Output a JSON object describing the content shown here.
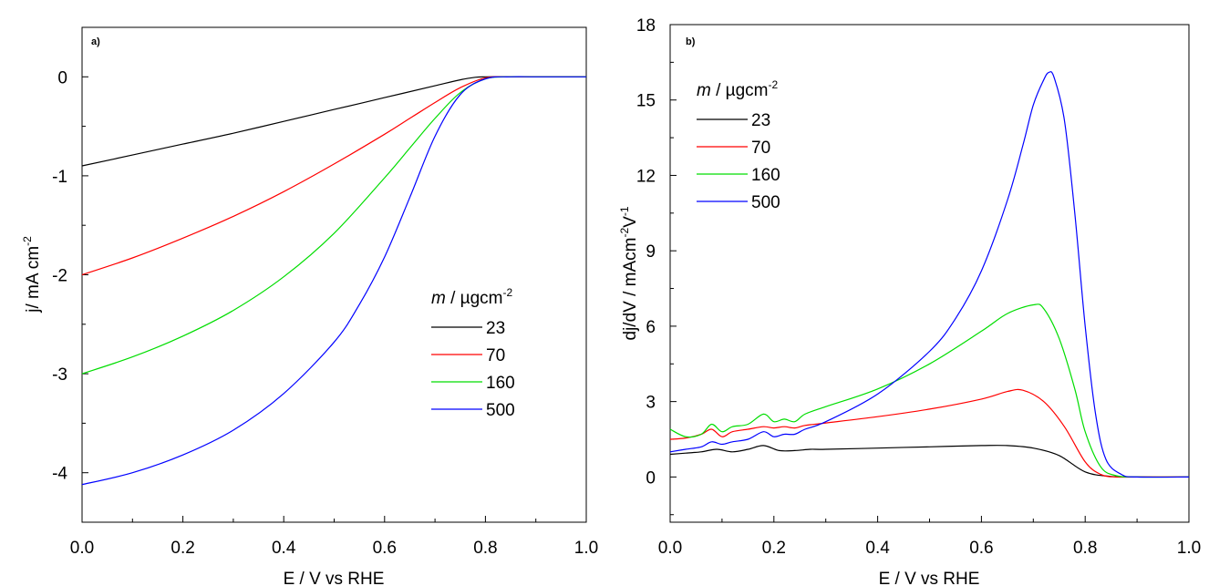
{
  "chart_data": [
    {
      "type": "line",
      "panel_label": "a)",
      "xlabel": "E / V vs RHE",
      "ylabel": "j/ mA cm",
      "ylabel_sup": "-2",
      "xlim": [
        0.0,
        1.0
      ],
      "ylim": [
        -4.5,
        0.5
      ],
      "xticks": [
        "0.0",
        "0.2",
        "0.4",
        "0.6",
        "0.8",
        "1.0"
      ],
      "yticks": [
        "0",
        "-1",
        "-2",
        "-3",
        "-4"
      ],
      "legend": {
        "title_italic": "m",
        "title_rest": " / µgcm",
        "title_sup": "-2",
        "placement": "right"
      },
      "series": [
        {
          "name": "23",
          "color": "#000000",
          "x": [
            0.0,
            0.1,
            0.2,
            0.3,
            0.4,
            0.5,
            0.6,
            0.7,
            0.75,
            0.78,
            0.8,
            0.85,
            0.9,
            1.0
          ],
          "y": [
            -0.9,
            -0.79,
            -0.68,
            -0.57,
            -0.45,
            -0.33,
            -0.21,
            -0.09,
            -0.03,
            -0.005,
            0.0,
            0.0,
            0.0,
            0.0
          ]
        },
        {
          "name": "70",
          "color": "#ff0000",
          "x": [
            0.0,
            0.1,
            0.2,
            0.3,
            0.4,
            0.5,
            0.6,
            0.65,
            0.7,
            0.75,
            0.8,
            0.85,
            0.9,
            1.0
          ],
          "y": [
            -2.0,
            -1.83,
            -1.63,
            -1.41,
            -1.16,
            -0.88,
            -0.58,
            -0.42,
            -0.26,
            -0.11,
            -0.01,
            0.0,
            0.0,
            0.0
          ]
        },
        {
          "name": "160",
          "color": "#00dd00",
          "x": [
            0.0,
            0.1,
            0.2,
            0.3,
            0.4,
            0.5,
            0.6,
            0.65,
            0.7,
            0.75,
            0.8,
            0.85,
            0.9,
            1.0
          ],
          "y": [
            -3.0,
            -2.83,
            -2.62,
            -2.36,
            -2.02,
            -1.58,
            -1.02,
            -0.72,
            -0.42,
            -0.16,
            -0.02,
            0.0,
            0.0,
            0.0
          ]
        },
        {
          "name": "500",
          "color": "#0000ff",
          "x": [
            0.0,
            0.1,
            0.2,
            0.3,
            0.4,
            0.5,
            0.55,
            0.6,
            0.65,
            0.7,
            0.75,
            0.8,
            0.85,
            0.9,
            1.0
          ],
          "y": [
            -4.12,
            -4.0,
            -3.82,
            -3.57,
            -3.2,
            -2.68,
            -2.3,
            -1.82,
            -1.22,
            -0.6,
            -0.18,
            -0.02,
            0.0,
            0.0,
            0.0
          ]
        }
      ]
    },
    {
      "type": "line",
      "panel_label": "b)",
      "xlabel": "E / V vs RHE",
      "ylabel": "dj/dV / mAcm",
      "ylabel_sup1": "-2",
      "ylabel_mid": "V",
      "ylabel_sup2": "-1",
      "xlim": [
        0.0,
        1.0
      ],
      "ylim": [
        -1.8,
        18.0
      ],
      "xticks": [
        "0.0",
        "0.2",
        "0.4",
        "0.6",
        "0.8",
        "1.0"
      ],
      "yticks": [
        "0",
        "3",
        "6",
        "9",
        "12",
        "15",
        "18"
      ],
      "legend": {
        "title_italic": "m",
        "title_rest": " / µgcm",
        "title_sup": "-2",
        "placement": "top-left"
      },
      "series": [
        {
          "name": "23",
          "color": "#000000",
          "x": [
            0.0,
            0.03,
            0.06,
            0.09,
            0.12,
            0.15,
            0.18,
            0.21,
            0.24,
            0.27,
            0.3,
            0.4,
            0.5,
            0.6,
            0.65,
            0.7,
            0.75,
            0.8,
            0.85,
            0.9,
            1.0
          ],
          "y": [
            0.9,
            0.95,
            1.0,
            1.1,
            1.0,
            1.1,
            1.25,
            1.05,
            1.05,
            1.1,
            1.1,
            1.15,
            1.2,
            1.25,
            1.25,
            1.15,
            0.85,
            0.2,
            0.02,
            0.0,
            0.0
          ]
        },
        {
          "name": "70",
          "color": "#ff0000",
          "x": [
            0.0,
            0.03,
            0.06,
            0.08,
            0.1,
            0.12,
            0.15,
            0.18,
            0.2,
            0.22,
            0.24,
            0.26,
            0.3,
            0.4,
            0.5,
            0.6,
            0.65,
            0.68,
            0.72,
            0.76,
            0.8,
            0.83,
            0.86,
            0.9,
            1.0
          ],
          "y": [
            1.5,
            1.55,
            1.7,
            1.9,
            1.6,
            1.8,
            1.9,
            2.0,
            1.95,
            2.0,
            1.95,
            2.05,
            2.15,
            2.4,
            2.7,
            3.1,
            3.4,
            3.45,
            3.0,
            2.0,
            0.6,
            0.1,
            0.0,
            0.0,
            0.0
          ]
        },
        {
          "name": "160",
          "color": "#00dd00",
          "x": [
            0.0,
            0.03,
            0.06,
            0.08,
            0.1,
            0.12,
            0.15,
            0.18,
            0.2,
            0.22,
            0.24,
            0.26,
            0.3,
            0.4,
            0.5,
            0.6,
            0.65,
            0.7,
            0.72,
            0.75,
            0.78,
            0.8,
            0.83,
            0.86,
            0.9,
            1.0
          ],
          "y": [
            1.9,
            1.6,
            1.7,
            2.1,
            1.8,
            2.0,
            2.1,
            2.5,
            2.2,
            2.3,
            2.2,
            2.5,
            2.8,
            3.5,
            4.5,
            5.8,
            6.5,
            6.85,
            6.7,
            5.5,
            3.5,
            1.8,
            0.4,
            0.05,
            0.0,
            0.0
          ]
        },
        {
          "name": "500",
          "color": "#0000ff",
          "x": [
            0.0,
            0.03,
            0.06,
            0.08,
            0.1,
            0.12,
            0.15,
            0.18,
            0.2,
            0.22,
            0.24,
            0.26,
            0.3,
            0.4,
            0.5,
            0.55,
            0.6,
            0.65,
            0.68,
            0.7,
            0.72,
            0.73,
            0.74,
            0.76,
            0.78,
            0.8,
            0.82,
            0.84,
            0.87,
            0.9,
            1.0
          ],
          "y": [
            1.0,
            1.1,
            1.2,
            1.4,
            1.3,
            1.4,
            1.5,
            1.8,
            1.6,
            1.7,
            1.7,
            1.9,
            2.2,
            3.3,
            5.0,
            6.3,
            8.2,
            11.0,
            13.2,
            14.8,
            15.8,
            16.1,
            15.9,
            14.2,
            10.5,
            6.0,
            2.5,
            0.7,
            0.1,
            0.0,
            0.0
          ]
        }
      ]
    }
  ]
}
